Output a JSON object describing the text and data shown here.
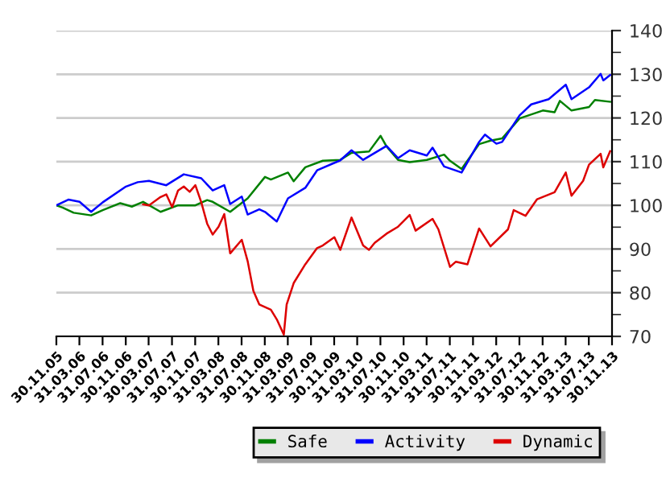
{
  "chart_data": {
    "type": "line",
    "xlim": [
      "2005-11-30",
      "2013-11-30"
    ],
    "xticks": [
      {
        "value": "2005-11-30",
        "label": "30.11.05"
      },
      {
        "value": "2006-03-31",
        "label": "31.03.06"
      },
      {
        "value": "2006-07-31",
        "label": "31.07.06"
      },
      {
        "value": "2006-11-30",
        "label": "30.11.06"
      },
      {
        "value": "2007-03-30",
        "label": "30.03.07"
      },
      {
        "value": "2007-07-31",
        "label": "31.07.07"
      },
      {
        "value": "2007-11-30",
        "label": "30.11.07"
      },
      {
        "value": "2008-03-31",
        "label": "31.03.08"
      },
      {
        "value": "2008-07-31",
        "label": "31.07.08"
      },
      {
        "value": "2008-11-30",
        "label": "30.11.08"
      },
      {
        "value": "2009-03-31",
        "label": "31.03.09"
      },
      {
        "value": "2009-07-31",
        "label": "31.07.09"
      },
      {
        "value": "2009-11-30",
        "label": "30.11.09"
      },
      {
        "value": "2010-03-31",
        "label": "31.03.10"
      },
      {
        "value": "2010-07-31",
        "label": "31.07.10"
      },
      {
        "value": "2010-11-30",
        "label": "30.11.10"
      },
      {
        "value": "2011-03-31",
        "label": "31.03.11"
      },
      {
        "value": "2011-07-31",
        "label": "31.07.11"
      },
      {
        "value": "2011-11-30",
        "label": "30.11.11"
      },
      {
        "value": "2012-03-31",
        "label": "31.03.12"
      },
      {
        "value": "2012-07-31",
        "label": "31.07.12"
      },
      {
        "value": "2012-11-30",
        "label": "30.11.12"
      },
      {
        "value": "2013-03-31",
        "label": "31.03.13"
      },
      {
        "value": "2013-07-31",
        "label": "31.07.13"
      },
      {
        "value": "2013-11-30",
        "label": "30.11.13"
      }
    ],
    "ylim": [
      70,
      140
    ],
    "yticks": [
      70,
      {
        "value": 75,
        "label": null
      },
      80,
      {
        "value": 85,
        "label": null
      },
      90,
      {
        "value": 95,
        "label": null
      },
      100,
      {
        "value": 105,
        "label": null
      },
      110,
      {
        "value": 115,
        "label": null
      },
      120,
      {
        "value": 125,
        "label": null
      },
      130,
      {
        "value": 135,
        "label": null
      },
      140
    ],
    "grid": "y",
    "legend": "bottom",
    "marker": "none",
    "line_style": "solid",
    "series": [
      {
        "name": "Safe",
        "color": "#008000",
        "x": [
          "2005-11-30",
          "2006-01",
          "2006-03",
          "2006-06",
          "2006-08",
          "2006-11",
          "2007-01",
          "2007-03",
          "2007-06",
          "2007-09",
          "2007-12",
          "2008-02",
          "2008-03",
          "2008-06",
          "2008-09",
          "2008-12",
          "2009-01",
          "2009-04",
          "2009-05",
          "2009-07",
          "2009-10",
          "2010-01",
          "2010-03",
          "2010-06",
          "2010-08",
          "2010-09",
          "2010-11",
          "2011-01",
          "2011-04",
          "2011-07",
          "2011-08",
          "2011-10",
          "2012-01",
          "2012-03",
          "2012-05",
          "2012-08",
          "2012-12",
          "2013-02",
          "2013-03",
          "2013-05",
          "2013-08",
          "2013-09",
          "2013-11-20"
        ],
        "values": [
          100,
          99.5,
          98.3,
          97.7,
          98.9,
          100.5,
          99.7,
          100.8,
          98.5,
          100,
          100,
          101.2,
          100.8,
          98.5,
          101.6,
          106.5,
          105.9,
          107.5,
          105.5,
          108.7,
          110.2,
          110.4,
          112,
          112.3,
          115.9,
          113.5,
          110.4,
          109.9,
          110.4,
          111.6,
          110.2,
          108.3,
          114,
          114.8,
          115.3,
          119.9,
          121.7,
          121.3,
          123.9,
          121.7,
          122.5,
          124.1,
          123.7
        ]
      },
      {
        "name": "Activity",
        "color": "#0000ff",
        "x": [
          "2005-11-30",
          "2006-02",
          "2006-04",
          "2006-06",
          "2006-08",
          "2006-12",
          "2007-02",
          "2007-04",
          "2007-07",
          "2007-10",
          "2008-01",
          "2008-03",
          "2008-05",
          "2008-06",
          "2008-08",
          "2008-09",
          "2008-11",
          "2008-12",
          "2009-02",
          "2009-04",
          "2009-07",
          "2009-09",
          "2010-01",
          "2010-03",
          "2010-05",
          "2010-09",
          "2010-11",
          "2011-01",
          "2011-04",
          "2011-05",
          "2011-07",
          "2011-10",
          "2012-01",
          "2012-02",
          "2012-04",
          "2012-05",
          "2012-08",
          "2012-10",
          "2013-01",
          "2013-04",
          "2013-05",
          "2013-08",
          "2013-10",
          "2013-10-15",
          "2013-11-20"
        ],
        "values": [
          100,
          101.3,
          100.8,
          98.5,
          100.7,
          104.3,
          105.3,
          105.6,
          104.6,
          107.1,
          106.2,
          103.4,
          104.6,
          100.3,
          102,
          97.9,
          99.1,
          98.5,
          96.3,
          101.6,
          104,
          108,
          110.3,
          112.6,
          110.4,
          113.6,
          110.8,
          112.6,
          111.4,
          113.2,
          108.9,
          107.5,
          114.5,
          116.2,
          114.1,
          114.5,
          120.6,
          123.1,
          124.3,
          127.6,
          124.3,
          127,
          130.1,
          128.6,
          129.8
        ]
      },
      {
        "name": "Dynamic",
        "color": "#dd0000",
        "x": [
          "2007-03",
          "2007-04",
          "2007-06",
          "2007-07",
          "2007-08",
          "2007-09",
          "2007-10",
          "2007-11",
          "2007-12",
          "2008-01",
          "2008-02",
          "2008-03",
          "2008-04",
          "2008-05",
          "2008-06",
          "2008-08",
          "2008-09",
          "2008-10",
          "2008-11",
          "2009-01",
          "2009-02",
          "2009-03-10",
          "2009-03-25",
          "2009-05",
          "2009-07",
          "2009-09",
          "2009-10",
          "2009-12",
          "2010-01",
          "2010-03",
          "2010-05",
          "2010-06",
          "2010-07",
          "2010-09",
          "2010-11",
          "2011-01",
          "2011-02",
          "2011-05",
          "2011-06",
          "2011-08",
          "2011-09",
          "2011-11",
          "2012-01",
          "2012-03",
          "2012-06",
          "2012-07",
          "2012-09",
          "2012-11",
          "2013-02",
          "2013-04",
          "2013-05",
          "2013-07",
          "2013-08",
          "2013-10",
          "2013-10-15",
          "2013-11-20"
        ],
        "values": [
          100.2,
          100,
          101.9,
          102.5,
          99.6,
          103.4,
          104.3,
          103.1,
          104.6,
          100.7,
          95.8,
          93.3,
          95.1,
          98,
          89,
          92.1,
          87.2,
          80.4,
          77.3,
          76.1,
          73.9,
          70.4,
          77.3,
          82.2,
          86.5,
          90.2,
          90.8,
          92.7,
          89.8,
          97.2,
          90.8,
          89.8,
          91.4,
          93.5,
          95.1,
          97.8,
          94.2,
          96.9,
          94.5,
          85.9,
          87.1,
          86.5,
          94.7,
          90.6,
          94.5,
          98.9,
          97.6,
          101.4,
          103,
          107.5,
          102.2,
          105.6,
          109.3,
          111.8,
          108.7,
          112.4
        ]
      }
    ]
  }
}
